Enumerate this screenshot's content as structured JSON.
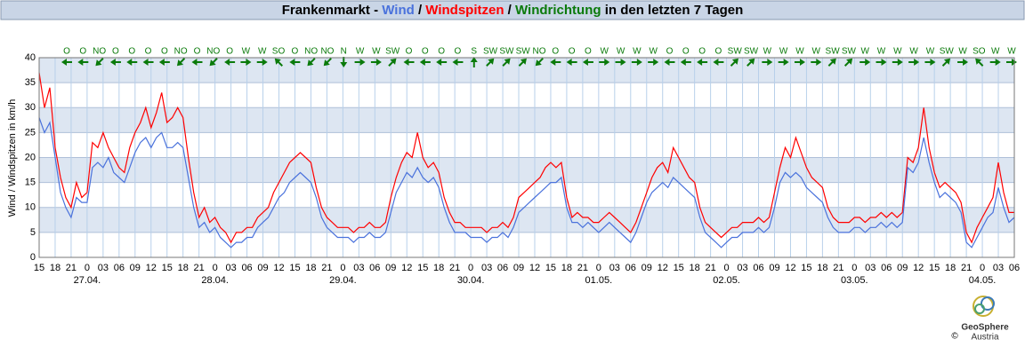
{
  "chart_data": {
    "type": "line",
    "title_parts": [
      "Frankenmarkt - ",
      " / ",
      " / ",
      "Windrichtung",
      " in den letzten 7 Tagen"
    ],
    "y_label": "Wind / Windspitzen in km/h",
    "ylim": [
      0,
      40
    ],
    "yticks": [
      0,
      5,
      10,
      15,
      20,
      25,
      30,
      35,
      40
    ],
    "x_tick_labels": [
      "15",
      "18",
      "21",
      "0",
      "03",
      "06",
      "09",
      "12",
      "15",
      "18",
      "21",
      "0",
      "03",
      "06",
      "09",
      "12",
      "15",
      "18",
      "21",
      "0",
      "03",
      "06",
      "09",
      "12",
      "15",
      "18",
      "21",
      "0",
      "03",
      "06",
      "09",
      "12",
      "15",
      "18",
      "21",
      "0",
      "03",
      "06",
      "09",
      "12",
      "15",
      "18",
      "21",
      "0",
      "03",
      "06",
      "09",
      "12",
      "15",
      "18",
      "21",
      "0",
      "03",
      "06",
      "09",
      "12",
      "15",
      "18",
      "21",
      "0",
      "03",
      "06"
    ],
    "x_date_labels": [
      "27.04.",
      "28.04.",
      "29.04.",
      "30.04.",
      "01.05.",
      "02.05.",
      "03.05.",
      "04.05."
    ],
    "wind_direction": [
      "O",
      "O",
      "NO",
      "O",
      "O",
      "O",
      "O",
      "NO",
      "O",
      "NO",
      "O",
      "W",
      "W",
      "SO",
      "O",
      "NO",
      "NO",
      "N",
      "W",
      "W",
      "SW",
      "O",
      "O",
      "O",
      "O",
      "S",
      "SW",
      "SW",
      "SW",
      "NO",
      "O",
      "O",
      "O",
      "W",
      "W",
      "W",
      "W",
      "O",
      "O",
      "O",
      "O",
      "SW",
      "SW",
      "W",
      "W",
      "W",
      "W",
      "SW",
      "SW",
      "W",
      "W",
      "W",
      "W",
      "W",
      "SW",
      "W",
      "SO",
      "W",
      "W"
    ],
    "wind_direction_color": "#0a7a0a",
    "series": [
      {
        "name": "Wind",
        "color": "#4a72dc",
        "values": [
          28,
          25,
          27,
          20,
          13,
          10,
          8,
          12,
          11,
          11,
          18,
          19,
          18,
          20,
          17,
          16,
          15,
          18,
          21,
          23,
          24,
          22,
          24,
          25,
          22,
          22,
          23,
          22,
          16,
          10,
          6,
          7,
          5,
          6,
          4,
          3,
          2,
          3,
          3,
          4,
          4,
          6,
          7,
          8,
          10,
          12,
          13,
          15,
          16,
          17,
          16,
          15,
          12,
          8,
          6,
          5,
          4,
          4,
          4,
          3,
          4,
          4,
          5,
          4,
          4,
          5,
          9,
          13,
          15,
          17,
          16,
          18,
          16,
          15,
          16,
          14,
          10,
          7,
          5,
          5,
          5,
          4,
          4,
          4,
          3,
          4,
          4,
          5,
          4,
          6,
          9,
          10,
          11,
          12,
          13,
          14,
          15,
          15,
          16,
          10,
          7,
          7,
          6,
          7,
          6,
          5,
          6,
          7,
          6,
          5,
          4,
          3,
          5,
          8,
          11,
          13,
          14,
          15,
          14,
          16,
          15,
          14,
          13,
          12,
          8,
          5,
          4,
          3,
          2,
          3,
          4,
          4,
          5,
          5,
          5,
          6,
          5,
          6,
          10,
          15,
          17,
          16,
          17,
          16,
          14,
          13,
          12,
          11,
          8,
          6,
          5,
          5,
          5,
          6,
          6,
          5,
          6,
          6,
          7,
          6,
          7,
          6,
          7,
          18,
          17,
          19,
          24,
          19,
          15,
          12,
          13,
          12,
          11,
          9,
          3,
          2,
          4,
          6,
          8,
          9,
          14,
          10,
          7,
          8
        ]
      },
      {
        "name": "Windspitzen",
        "color": "#ff0000",
        "values": [
          37,
          30,
          34,
          22,
          16,
          12,
          10,
          15,
          12,
          13,
          23,
          22,
          25,
          22,
          20,
          18,
          17,
          22,
          25,
          27,
          30,
          26,
          29,
          33,
          27,
          28,
          30,
          28,
          20,
          13,
          8,
          10,
          7,
          8,
          6,
          5,
          3,
          5,
          5,
          6,
          6,
          8,
          9,
          10,
          13,
          15,
          17,
          19,
          20,
          21,
          20,
          19,
          14,
          10,
          8,
          7,
          6,
          6,
          6,
          5,
          6,
          6,
          7,
          6,
          6,
          7,
          12,
          16,
          19,
          21,
          20,
          25,
          20,
          18,
          19,
          17,
          12,
          9,
          7,
          7,
          6,
          6,
          6,
          6,
          5,
          6,
          6,
          7,
          6,
          8,
          12,
          13,
          14,
          15,
          16,
          18,
          19,
          18,
          19,
          12,
          8,
          9,
          8,
          8,
          7,
          7,
          8,
          9,
          8,
          7,
          6,
          5,
          7,
          10,
          13,
          16,
          18,
          19,
          17,
          22,
          20,
          18,
          16,
          15,
          10,
          7,
          6,
          5,
          4,
          5,
          6,
          6,
          7,
          7,
          7,
          8,
          7,
          8,
          13,
          18,
          22,
          20,
          24,
          21,
          18,
          16,
          15,
          14,
          10,
          8,
          7,
          7,
          7,
          8,
          8,
          7,
          8,
          8,
          9,
          8,
          9,
          8,
          9,
          20,
          19,
          22,
          30,
          22,
          17,
          14,
          15,
          14,
          13,
          11,
          5,
          3,
          6,
          8,
          10,
          12,
          19,
          13,
          9,
          9
        ]
      }
    ],
    "logo": {
      "name": "GeoSphere",
      "sub": "Austria",
      "copyright": "©"
    }
  }
}
